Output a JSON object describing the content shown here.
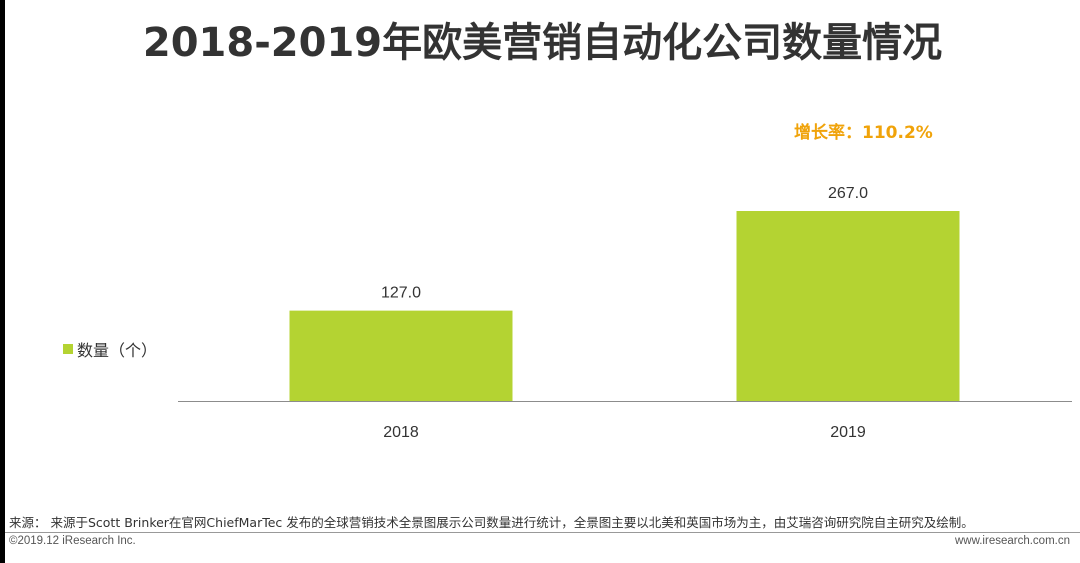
{
  "title": "2018-2019年欧美营销自动化公司数量情况",
  "legend": {
    "label": "数量（个）",
    "color": "#b4d332"
  },
  "annotation": {
    "growth_text": "增长率：110.2%",
    "color": "#f0a30a"
  },
  "chart_data": {
    "type": "bar",
    "title": "2018-2019年欧美营销自动化公司数量情况",
    "categories": [
      "2018",
      "2019"
    ],
    "series": [
      {
        "name": "数量（个）",
        "values": [
          127.0,
          267.0
        ]
      }
    ],
    "data_labels": [
      "127.0",
      "267.0"
    ],
    "xlabel": "",
    "ylabel": "",
    "ylim": [
      0,
      267
    ],
    "grid": false,
    "legend_position": "left",
    "annotations": [
      "增长率：110.2%"
    ],
    "bar_color": "#b4d332"
  },
  "footer": {
    "source": "来源： 来源于Scott Brinker在官网ChiefMarTec 发布的全球营销技术全景图展示公司数量进行统计，全景图主要以北美和英国市场为主，由艾瑞咨询研究院自主研究及绘制。",
    "copyright": "©2019.12 iResearch Inc.",
    "website": "www.iresearch.com.cn"
  }
}
